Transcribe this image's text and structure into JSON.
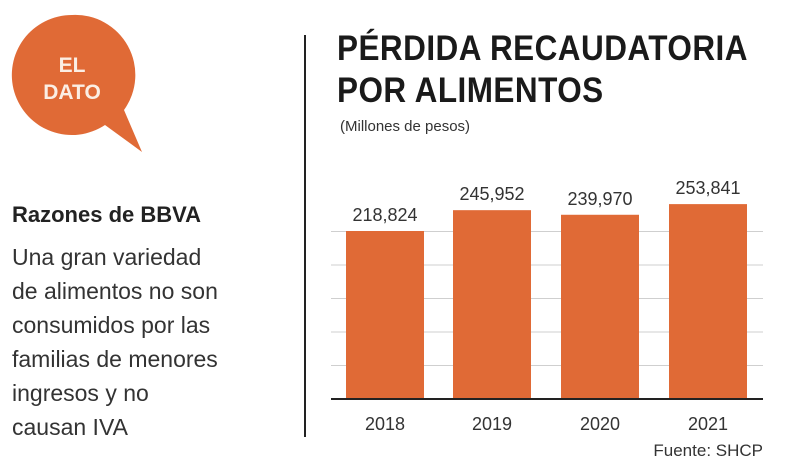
{
  "badge": {
    "line1": "EL",
    "line2": "DATO"
  },
  "sidebar": {
    "title": "Razones de BBVA",
    "body_lines": [
      "Una gran variedad",
      "de alimentos no son",
      "consumidos por las",
      "familias de menores",
      "ingresos y no",
      "causan IVA"
    ]
  },
  "colors": {
    "accent": "#e06a36",
    "grid": "#cfcfcf",
    "axis": "#222222"
  },
  "chart_data": {
    "type": "bar",
    "title": "PÉRDIDA RECAUDATORIA POR ALIMENTOS",
    "title_lines": [
      "PÉRDIDA RECAUDATORIA",
      "POR ALIMENTOS"
    ],
    "subtitle": "(Millones de pesos)",
    "categories": [
      "2018",
      "2019",
      "2020",
      "2021"
    ],
    "values": [
      218824,
      245952,
      239970,
      253841
    ],
    "value_labels": [
      "218,824",
      "245,952",
      "239,970",
      "253,841"
    ],
    "xlabel": "",
    "ylabel": "",
    "ylim": [
      0,
      217000
    ],
    "grid": true,
    "source": "Fuente: SHCP"
  }
}
